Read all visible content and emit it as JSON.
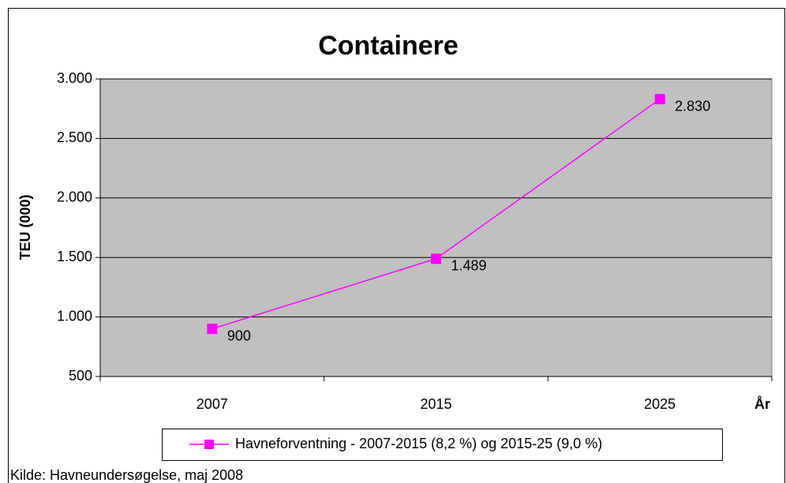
{
  "chart_data": {
    "type": "line",
    "title": "Containere",
    "y_label": "TEU (000)",
    "x_label": "År",
    "categories": [
      "2007",
      "2015",
      "2025"
    ],
    "series": [
      {
        "name": "Havneforventning - 2007-2015 (8,2 %) og 2015-25 (9,0 %)",
        "color": "#ff00ff",
        "values": [
          900,
          1489,
          2830
        ],
        "value_labels": [
          "900",
          "1.489",
          "2.830"
        ]
      }
    ],
    "ylim": [
      500,
      3000
    ],
    "yticks": [
      500,
      {
        "value": 1000,
        "label": "1.000"
      },
      {
        "value": 1500,
        "label": "1.500"
      },
      {
        "value": 2000,
        "label": "2.000"
      },
      {
        "value": 2500,
        "label": "2.500"
      },
      {
        "value": 3000,
        "label": "3.000"
      }
    ],
    "grid": true,
    "plot_background": "#c0c0c0",
    "legend": "bottom",
    "source": "Kilde: Havneundersøgelse, maj 2008"
  }
}
